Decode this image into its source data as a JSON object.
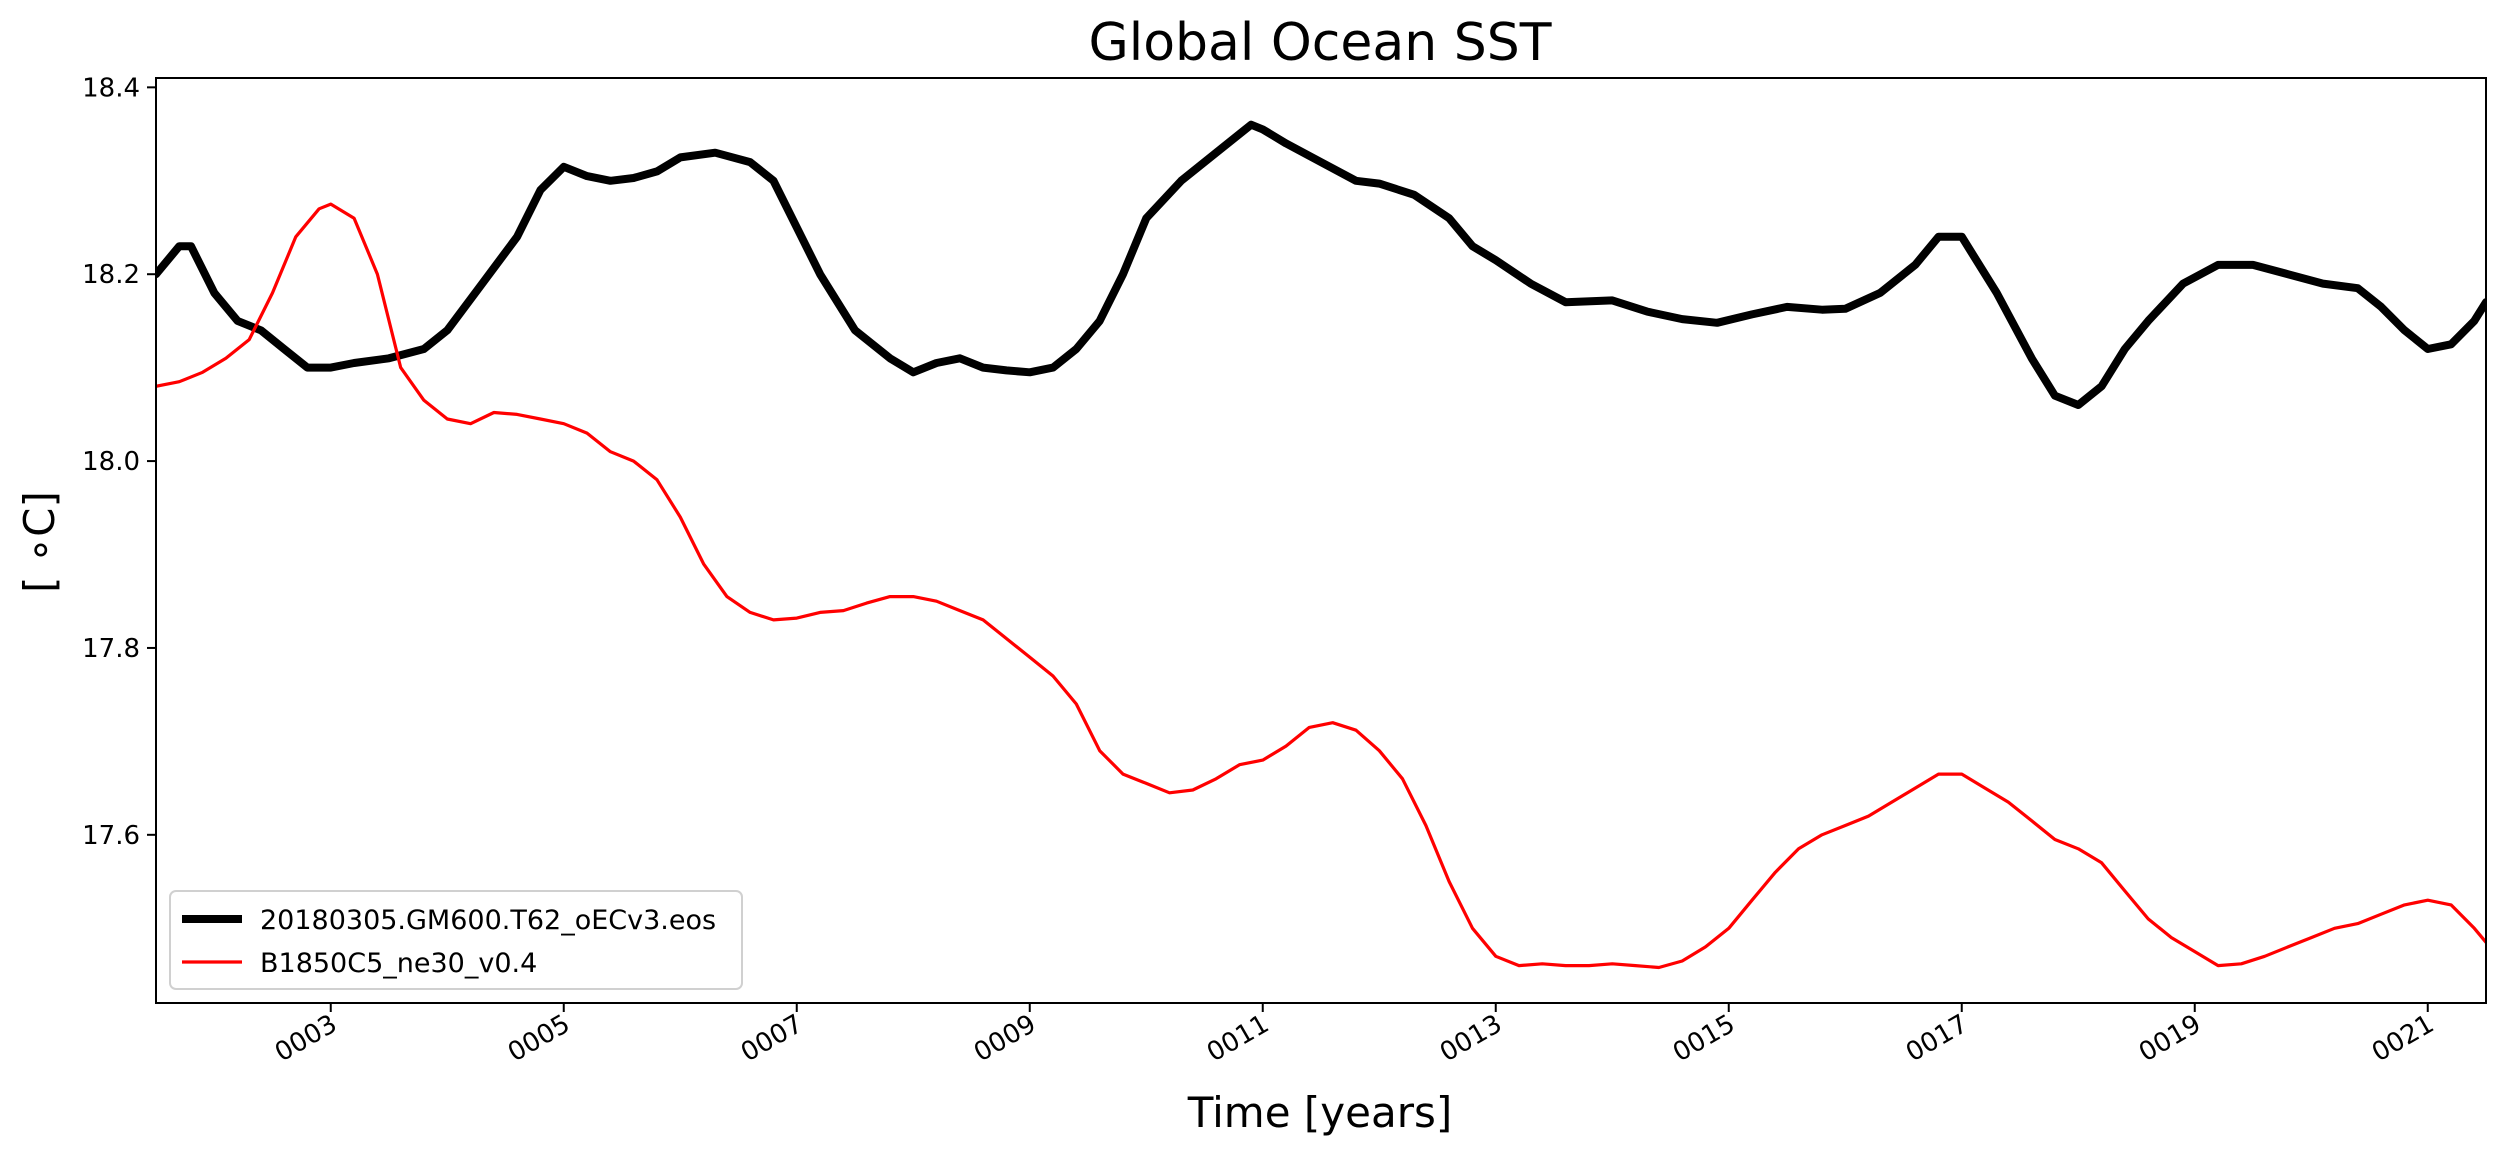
{
  "chart_data": {
    "type": "line",
    "title": "Global Ocean SST",
    "xlabel": "Time [years]",
    "ylabel": "[ ∘C]",
    "xlim": [
      1.5,
      21.5
    ],
    "ylim": [
      17.42,
      18.41
    ],
    "x_ticks": [
      3,
      5,
      7,
      9,
      11,
      13,
      15,
      17,
      19,
      21
    ],
    "x_tick_labels": [
      "0003",
      "0005",
      "0007",
      "0009",
      "0011",
      "0013",
      "0015",
      "0017",
      "0019",
      "0021"
    ],
    "y_ticks": [
      17.6,
      17.8,
      18.0,
      18.2,
      18.4
    ],
    "y_tick_labels": [
      "17.6",
      "17.8",
      "18.0",
      "18.2",
      "18.4"
    ],
    "grid": false,
    "legend_position": "lower-left",
    "series": [
      {
        "name": "20180305.GM600.T62_oECv3.eos",
        "color": "#000000",
        "linewidth": "thick",
        "x": [
          1.5,
          1.7,
          1.8,
          2.0,
          2.2,
          2.4,
          2.6,
          2.8,
          3.0,
          3.2,
          3.5,
          3.8,
          4.0,
          4.3,
          4.6,
          4.8,
          5.0,
          5.2,
          5.4,
          5.6,
          5.8,
          6.0,
          6.3,
          6.6,
          6.8,
          7.0,
          7.2,
          7.5,
          7.8,
          8.0,
          8.2,
          8.4,
          8.6,
          8.8,
          9.0,
          9.2,
          9.4,
          9.6,
          9.8,
          10.0,
          10.3,
          10.6,
          10.9,
          11.0,
          11.2,
          11.5,
          11.8,
          12.0,
          12.3,
          12.6,
          12.8,
          13.0,
          13.3,
          13.6,
          14.0,
          14.3,
          14.6,
          14.9,
          15.2,
          15.5,
          15.8,
          16.0,
          16.3,
          16.6,
          16.8,
          17.0,
          17.3,
          17.6,
          17.8,
          18.0,
          18.2,
          18.4,
          18.6,
          18.9,
          19.2,
          19.5,
          19.8,
          20.1,
          20.4,
          20.6,
          20.8,
          21.0,
          21.2,
          21.4,
          21.5
        ],
        "y": [
          18.2,
          18.23,
          18.23,
          18.18,
          18.15,
          18.14,
          18.12,
          18.1,
          18.1,
          18.105,
          18.11,
          18.12,
          18.14,
          18.19,
          18.24,
          18.29,
          18.315,
          18.305,
          18.3,
          18.303,
          18.31,
          18.325,
          18.33,
          18.32,
          18.3,
          18.25,
          18.2,
          18.14,
          18.11,
          18.095,
          18.105,
          18.11,
          18.1,
          18.097,
          18.095,
          18.1,
          18.12,
          18.15,
          18.2,
          18.26,
          18.3,
          18.33,
          18.36,
          18.355,
          18.34,
          18.32,
          18.3,
          18.297,
          18.285,
          18.26,
          18.23,
          18.215,
          18.19,
          18.17,
          18.172,
          18.16,
          18.152,
          18.148,
          18.157,
          18.165,
          18.162,
          18.163,
          18.18,
          18.21,
          18.24,
          18.24,
          18.18,
          18.11,
          18.07,
          18.06,
          18.08,
          18.12,
          18.15,
          18.19,
          18.21,
          18.21,
          18.2,
          18.19,
          18.185,
          18.165,
          18.14,
          18.12,
          18.125,
          18.15,
          18.17
        ]
      },
      {
        "name": "B1850C5_ne30_v0.4",
        "color": "#ff0000",
        "linewidth": "thin",
        "x": [
          1.5,
          1.7,
          1.9,
          2.1,
          2.3,
          2.5,
          2.7,
          2.9,
          3.0,
          3.2,
          3.4,
          3.6,
          3.8,
          4.0,
          4.2,
          4.4,
          4.6,
          4.8,
          5.0,
          5.2,
          5.4,
          5.6,
          5.8,
          6.0,
          6.2,
          6.4,
          6.6,
          6.8,
          7.0,
          7.2,
          7.4,
          7.6,
          7.8,
          8.0,
          8.2,
          8.4,
          8.6,
          8.8,
          9.0,
          9.2,
          9.4,
          9.6,
          9.8,
          10.0,
          10.2,
          10.4,
          10.6,
          10.8,
          11.0,
          11.2,
          11.4,
          11.6,
          11.8,
          12.0,
          12.2,
          12.4,
          12.6,
          12.8,
          13.0,
          13.2,
          13.4,
          13.6,
          13.8,
          14.0,
          14.2,
          14.4,
          14.6,
          14.8,
          15.0,
          15.2,
          15.4,
          15.6,
          15.8,
          16.0,
          16.2,
          16.4,
          16.6,
          16.8,
          17.0,
          17.2,
          17.4,
          17.6,
          17.8,
          18.0,
          18.2,
          18.4,
          18.6,
          18.8,
          19.0,
          19.2,
          19.4,
          19.6,
          19.8,
          20.0,
          20.2,
          20.4,
          20.6,
          20.8,
          21.0,
          21.2,
          21.4,
          21.5
        ],
        "y": [
          18.08,
          18.085,
          18.095,
          18.11,
          18.13,
          18.18,
          18.24,
          18.27,
          18.275,
          18.26,
          18.2,
          18.1,
          18.065,
          18.045,
          18.04,
          18.052,
          18.05,
          18.045,
          18.04,
          18.03,
          18.01,
          18.0,
          17.98,
          17.94,
          17.89,
          17.855,
          17.838,
          17.83,
          17.832,
          17.838,
          17.84,
          17.848,
          17.855,
          17.855,
          17.85,
          17.84,
          17.83,
          17.81,
          17.79,
          17.77,
          17.74,
          17.69,
          17.665,
          17.655,
          17.645,
          17.648,
          17.66,
          17.675,
          17.68,
          17.695,
          17.715,
          17.72,
          17.712,
          17.69,
          17.66,
          17.61,
          17.55,
          17.5,
          17.47,
          17.46,
          17.462,
          17.46,
          17.46,
          17.462,
          17.46,
          17.458,
          17.465,
          17.48,
          17.5,
          17.53,
          17.56,
          17.585,
          17.6,
          17.61,
          17.62,
          17.635,
          17.65,
          17.665,
          17.665,
          17.65,
          17.635,
          17.615,
          17.595,
          17.585,
          17.57,
          17.54,
          17.51,
          17.49,
          17.475,
          17.46,
          17.462,
          17.47,
          17.48,
          17.49,
          17.5,
          17.505,
          17.515,
          17.525,
          17.53,
          17.525,
          17.5,
          17.485
        ]
      }
    ]
  }
}
